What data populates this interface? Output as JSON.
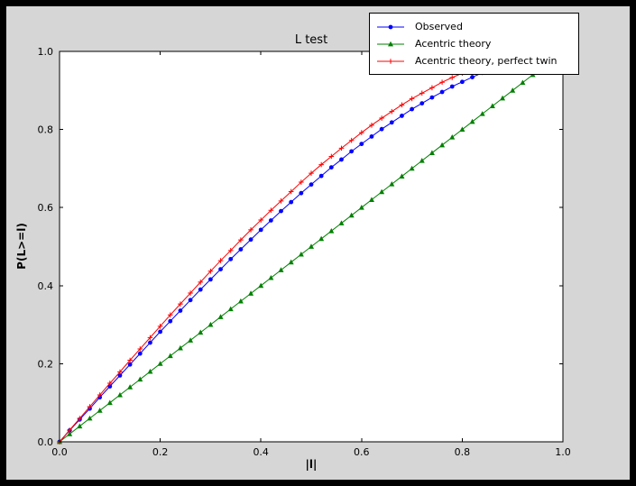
{
  "window": {
    "background": "#000000",
    "figure_background": "#d6d6d6",
    "plot_background": "#ffffff"
  },
  "chart_data": {
    "type": "line",
    "title": "L test",
    "xlabel": "|l|",
    "ylabel": "P(L>=l)",
    "xlim": [
      0.0,
      1.0
    ],
    "ylim": [
      0.0,
      1.0
    ],
    "grid": false,
    "xtick_values": [
      0.0,
      0.2,
      0.4,
      0.6,
      0.8,
      1.0
    ],
    "xtick_labels": [
      "0.0",
      "0.2",
      "0.4",
      "0.6",
      "0.8",
      "1.0"
    ],
    "ytick_values": [
      0.0,
      0.2,
      0.4,
      0.6,
      0.8,
      1.0
    ],
    "ytick_labels": [
      "0.0",
      "0.2",
      "0.4",
      "0.6",
      "0.8",
      "1.0"
    ],
    "legend": {
      "position": "upper-right",
      "entries": [
        "Observed",
        "Acentric theory",
        "Acentric theory, perfect twin"
      ]
    },
    "series": [
      {
        "name": "Observed",
        "color": "#0000ff",
        "marker": "circle",
        "x": [
          0.0,
          0.02,
          0.04,
          0.06,
          0.08,
          0.1,
          0.12,
          0.14,
          0.16,
          0.18,
          0.2,
          0.22,
          0.24,
          0.26,
          0.28,
          0.3,
          0.32,
          0.34,
          0.36,
          0.38,
          0.4,
          0.42,
          0.44,
          0.46,
          0.48,
          0.5,
          0.52,
          0.54,
          0.56,
          0.58,
          0.6,
          0.62,
          0.64,
          0.66,
          0.68,
          0.7,
          0.72,
          0.74,
          0.76,
          0.78,
          0.8,
          0.82,
          0.84,
          0.86
        ],
        "y": [
          0.0,
          0.029,
          0.057,
          0.085,
          0.114,
          0.142,
          0.17,
          0.198,
          0.226,
          0.254,
          0.282,
          0.309,
          0.336,
          0.363,
          0.39,
          0.416,
          0.442,
          0.468,
          0.493,
          0.518,
          0.543,
          0.567,
          0.591,
          0.614,
          0.637,
          0.659,
          0.681,
          0.703,
          0.723,
          0.744,
          0.763,
          0.782,
          0.801,
          0.818,
          0.835,
          0.852,
          0.867,
          0.882,
          0.896,
          0.91,
          0.922,
          0.934,
          0.945,
          0.955
        ]
      },
      {
        "name": "Acentric theory",
        "color": "#008000",
        "marker": "triangle-up",
        "x": [
          0.0,
          0.02,
          0.04,
          0.06,
          0.08,
          0.1,
          0.12,
          0.14,
          0.16,
          0.18,
          0.2,
          0.22,
          0.24,
          0.26,
          0.28,
          0.3,
          0.32,
          0.34,
          0.36,
          0.38,
          0.4,
          0.42,
          0.44,
          0.46,
          0.48,
          0.5,
          0.52,
          0.54,
          0.56,
          0.58,
          0.6,
          0.62,
          0.64,
          0.66,
          0.68,
          0.7,
          0.72,
          0.74,
          0.76,
          0.78,
          0.8,
          0.82,
          0.84,
          0.86,
          0.88,
          0.9,
          0.92,
          0.94,
          0.96
        ],
        "y": [
          0.0,
          0.02,
          0.04,
          0.06,
          0.08,
          0.1,
          0.12,
          0.14,
          0.16,
          0.18,
          0.2,
          0.22,
          0.24,
          0.26,
          0.28,
          0.3,
          0.32,
          0.34,
          0.36,
          0.38,
          0.4,
          0.42,
          0.44,
          0.46,
          0.48,
          0.5,
          0.52,
          0.54,
          0.56,
          0.58,
          0.6,
          0.62,
          0.64,
          0.66,
          0.68,
          0.7,
          0.72,
          0.74,
          0.76,
          0.78,
          0.8,
          0.82,
          0.84,
          0.86,
          0.88,
          0.9,
          0.92,
          0.94,
          0.96
        ]
      },
      {
        "name": "Acentric theory, perfect twin",
        "color": "#ff0000",
        "marker": "plus",
        "x": [
          0.0,
          0.02,
          0.04,
          0.06,
          0.08,
          0.1,
          0.12,
          0.14,
          0.16,
          0.18,
          0.2,
          0.22,
          0.24,
          0.26,
          0.28,
          0.3,
          0.32,
          0.34,
          0.36,
          0.38,
          0.4,
          0.42,
          0.44,
          0.46,
          0.48,
          0.5,
          0.52,
          0.54,
          0.56,
          0.58,
          0.6,
          0.62,
          0.64,
          0.66,
          0.68,
          0.7,
          0.72,
          0.74,
          0.76,
          0.78,
          0.8,
          0.82,
          0.84
        ],
        "y": [
          0.0,
          0.03,
          0.06,
          0.09,
          0.12,
          0.15,
          0.179,
          0.209,
          0.238,
          0.267,
          0.296,
          0.325,
          0.353,
          0.381,
          0.409,
          0.437,
          0.464,
          0.49,
          0.517,
          0.543,
          0.568,
          0.593,
          0.617,
          0.641,
          0.665,
          0.688,
          0.71,
          0.731,
          0.752,
          0.772,
          0.792,
          0.811,
          0.829,
          0.846,
          0.863,
          0.879,
          0.893,
          0.907,
          0.921,
          0.933,
          0.944,
          0.954,
          0.964
        ]
      }
    ]
  }
}
